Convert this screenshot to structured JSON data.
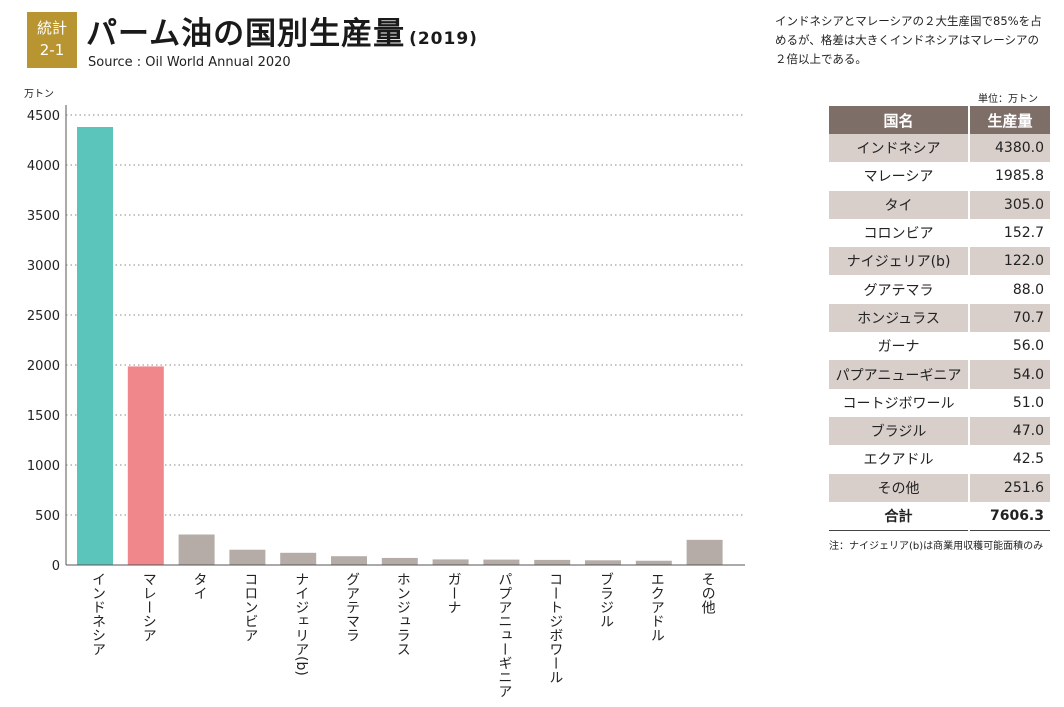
{
  "badge": {
    "line1": "統計",
    "line2": "2-1"
  },
  "header": {
    "title": "パーム油の国別生産量",
    "year": "(2019)",
    "source": "Source : Oil World Annual 2020"
  },
  "note_top": "インドネシアとマレーシアの２大生産国で85%を占めるが、格差は大きくインドネシアはマレーシアの２倍以上である。",
  "chart_data": {
    "type": "bar",
    "title": "パーム油の国別生産量 (2019)",
    "ylabel": "万トン",
    "xlabel": "",
    "ylim": [
      0,
      4500
    ],
    "yticks": [
      0,
      500,
      1000,
      1500,
      2000,
      2500,
      3000,
      3500,
      4000,
      4500
    ],
    "grid": true,
    "categories": [
      "インドネシア",
      "マレーシア",
      "タイ",
      "コロンビア",
      "ナイジェリア(b)",
      "グアテマラ",
      "ホンジュラス",
      "ガーナ",
      "パプアニューギニア",
      "コートジボワール",
      "ブラジル",
      "エクアドル",
      "その他"
    ],
    "values": [
      4380.0,
      1985.8,
      305.0,
      152.7,
      122.0,
      88.0,
      70.7,
      56.0,
      54.0,
      51.0,
      47.0,
      42.5,
      251.6
    ],
    "colors": [
      "#5cc5bb",
      "#f0878b",
      "#b5aca7",
      "#b5aca7",
      "#b5aca7",
      "#b5aca7",
      "#b5aca7",
      "#b5aca7",
      "#b5aca7",
      "#b5aca7",
      "#b5aca7",
      "#b5aca7",
      "#b5aca7"
    ]
  },
  "table": {
    "unit": "単位：万トン",
    "col_country": "国名",
    "col_value": "生産量",
    "rows": [
      {
        "name": "インドネシア",
        "value": "4380.0"
      },
      {
        "name": "マレーシア",
        "value": "1985.8"
      },
      {
        "name": "タイ",
        "value": "305.0"
      },
      {
        "name": "コロンビア",
        "value": "152.7"
      },
      {
        "name": "ナイジェリア(b)",
        "value": "122.0"
      },
      {
        "name": "グアテマラ",
        "value": "88.0"
      },
      {
        "name": "ホンジュラス",
        "value": "70.7"
      },
      {
        "name": "ガーナ",
        "value": "56.0"
      },
      {
        "name": "パプアニューギニア",
        "value": "54.0"
      },
      {
        "name": "コートジボワール",
        "value": "51.0"
      },
      {
        "name": "ブラジル",
        "value": "47.0"
      },
      {
        "name": "エクアドル",
        "value": "42.5"
      },
      {
        "name": "その他",
        "value": "251.6"
      }
    ],
    "total_label": "合計",
    "total_value": "7606.3",
    "footnote": "注：ナイジェリア(b)は商業用収穫可能面積のみ"
  },
  "colors": {
    "badge": "#b89530",
    "table_header": "#7e6e68",
    "table_stripe": "#d8cfcb"
  }
}
